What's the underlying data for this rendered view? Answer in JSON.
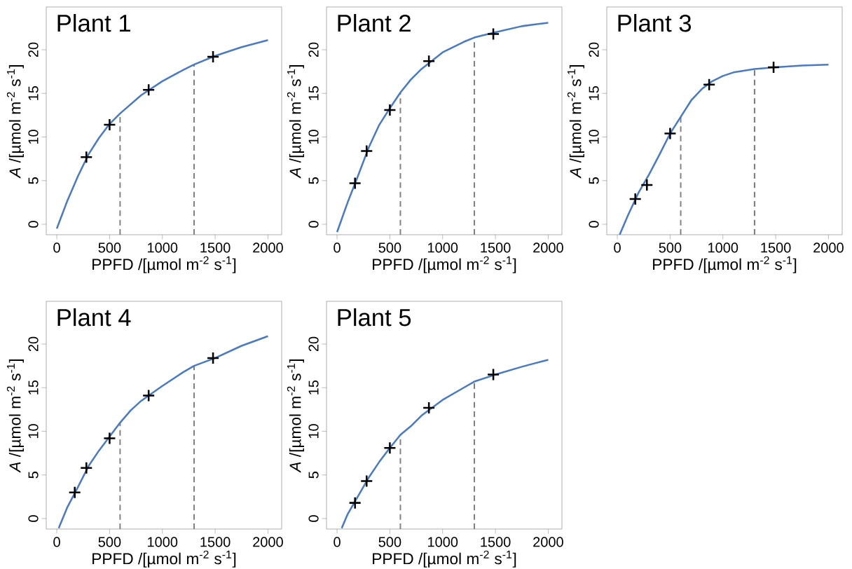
{
  "chart_data": [
    {
      "type": "line",
      "title": "Plant 1",
      "xlabel": "PPFD /[µmol m$^{-2}$ s$^{-1}$]",
      "ylabel": "*A* /[µmol m$^{-2}$ s$^{-1}$]",
      "xlim": [
        -100,
        2130
      ],
      "ylim": [
        -1.2,
        24.9
      ],
      "xticks": [
        0,
        500,
        1000,
        1500,
        2000
      ],
      "yticks": [
        0,
        5,
        10,
        15,
        20
      ],
      "series": [
        {
          "color": "#4a7ac4",
          "marker": "none",
          "x": [
            0,
            100,
            200,
            300,
            400,
            500,
            600,
            800,
            1000,
            1200,
            1300,
            1500,
            1750,
            2000
          ],
          "values": [
            -0.5,
            2.7,
            5.5,
            8.0,
            9.9,
            11.5,
            12.7,
            14.8,
            16.4,
            17.7,
            18.3,
            19.3,
            20.3,
            21.1
          ]
        },
        {
          "type": "scatter",
          "color": "#000000",
          "marker": "cross",
          "x": [
            280,
            500,
            870,
            1480
          ],
          "values": [
            7.7,
            11.4,
            15.4,
            19.2
          ]
        }
      ],
      "ref_lines": [
        {
          "axis": "x",
          "value": 600,
          "color": "#808080",
          "line_style": "dashed"
        },
        {
          "axis": "x",
          "value": 1300,
          "color": "#808080",
          "line_style": "dashed"
        }
      ]
    },
    {
      "type": "line",
      "title": "Plant 2",
      "xlabel": "PPFD /[µmol m$^{-2}$ s$^{-1}$]",
      "ylabel": "*A* /[µmol m$^{-2}$ s$^{-1}$]",
      "xlim": [
        -100,
        2130
      ],
      "ylim": [
        -1.2,
        24.9
      ],
      "xticks": [
        0,
        500,
        1000,
        1500,
        2000
      ],
      "yticks": [
        0,
        5,
        10,
        15,
        20
      ],
      "series": [
        {
          "color": "#4a7ac4",
          "marker": "none",
          "x": [
            0,
            100,
            200,
            300,
            400,
            500,
            600,
            700,
            800,
            1000,
            1200,
            1300,
            1500,
            1750,
            2000
          ],
          "values": [
            -0.9,
            2.5,
            5.6,
            8.8,
            11.4,
            13.3,
            15.1,
            16.6,
            17.8,
            19.7,
            20.9,
            21.4,
            22.0,
            22.7,
            23.1
          ]
        },
        {
          "type": "scatter",
          "color": "#000000",
          "marker": "cross",
          "x": [
            170,
            280,
            500,
            870,
            1480
          ],
          "values": [
            4.7,
            8.4,
            13.1,
            18.7,
            21.8
          ]
        }
      ],
      "ref_lines": [
        {
          "axis": "x",
          "value": 600,
          "color": "#808080",
          "line_style": "dashed"
        },
        {
          "axis": "x",
          "value": 1300,
          "color": "#808080",
          "line_style": "dashed"
        }
      ]
    },
    {
      "type": "line",
      "title": "Plant 3",
      "xlabel": "PPFD /[µmol m$^{-2}$ s$^{-1}$]",
      "ylabel": "*A* /[µmol m$^{-2}$ s$^{-1}$]",
      "xlim": [
        -100,
        2130
      ],
      "ylim": [
        -1.2,
        24.9
      ],
      "xticks": [
        0,
        500,
        1000,
        1500,
        2000
      ],
      "yticks": [
        0,
        5,
        10,
        15,
        20
      ],
      "series": [
        {
          "color": "#4a7ac4",
          "marker": "none",
          "x": [
            22,
            100,
            200,
            300,
            400,
            500,
            600,
            700,
            800,
            900,
            1000,
            1100,
            1300,
            1500,
            1750,
            2000
          ],
          "values": [
            -1.2,
            1.0,
            3.6,
            5.7,
            8.0,
            10.4,
            12.3,
            14.2,
            15.5,
            16.4,
            17.0,
            17.4,
            17.8,
            18.0,
            18.2,
            18.3
          ]
        },
        {
          "type": "scatter",
          "color": "#000000",
          "marker": "cross",
          "x": [
            170,
            280,
            500,
            870,
            1480
          ],
          "values": [
            2.9,
            4.5,
            10.4,
            16.0,
            18.0
          ]
        }
      ],
      "ref_lines": [
        {
          "axis": "x",
          "value": 600,
          "color": "#808080",
          "line_style": "dashed"
        },
        {
          "axis": "x",
          "value": 1300,
          "color": "#808080",
          "line_style": "dashed"
        }
      ]
    },
    {
      "type": "line",
      "title": "Plant 4",
      "xlabel": "PPFD /[µmol m$^{-2}$ s$^{-1}$]",
      "ylabel": "*A* /[µmol m$^{-2}$ s$^{-1}$]",
      "xlim": [
        -100,
        2130
      ],
      "ylim": [
        -1.2,
        24.9
      ],
      "xticks": [
        0,
        500,
        1000,
        1500,
        2000
      ],
      "yticks": [
        0,
        5,
        10,
        15,
        20
      ],
      "series": [
        {
          "color": "#4a7ac4",
          "marker": "none",
          "x": [
            18,
            100,
            200,
            300,
            400,
            500,
            600,
            700,
            800,
            1000,
            1200,
            1300,
            1500,
            1750,
            2000
          ],
          "values": [
            -1.1,
            1.3,
            3.6,
            6.0,
            7.8,
            9.4,
            11.0,
            12.4,
            13.5,
            15.2,
            16.8,
            17.5,
            18.4,
            19.8,
            20.9
          ]
        },
        {
          "type": "scatter",
          "color": "#000000",
          "marker": "cross",
          "x": [
            170,
            280,
            500,
            870,
            1480
          ],
          "values": [
            3.0,
            5.8,
            9.2,
            14.1,
            18.4
          ]
        }
      ],
      "ref_lines": [
        {
          "axis": "x",
          "value": 600,
          "color": "#808080",
          "line_style": "dashed"
        },
        {
          "axis": "x",
          "value": 1300,
          "color": "#808080",
          "line_style": "dashed"
        }
      ]
    },
    {
      "type": "line",
      "title": "Plant 5",
      "xlabel": "PPFD /[µmol m$^{-2}$ s$^{-1}$]",
      "ylabel": "*A* /[µmol m$^{-2}$ s$^{-1}$]",
      "xlim": [
        -100,
        2130
      ],
      "ylim": [
        -1.2,
        24.9
      ],
      "xticks": [
        0,
        500,
        1000,
        1500,
        2000
      ],
      "yticks": [
        0,
        5,
        10,
        15,
        20
      ],
      "series": [
        {
          "color": "#4a7ac4",
          "marker": "none",
          "x": [
            44,
            100,
            200,
            300,
            400,
            500,
            600,
            700,
            800,
            1000,
            1200,
            1300,
            1500,
            1750,
            2000
          ],
          "values": [
            -1.1,
            0.5,
            2.6,
            4.7,
            6.5,
            8.1,
            9.6,
            10.6,
            11.8,
            13.6,
            15.0,
            15.7,
            16.5,
            17.4,
            18.2
          ]
        },
        {
          "type": "scatter",
          "color": "#000000",
          "marker": "cross",
          "x": [
            170,
            280,
            500,
            870,
            1480
          ],
          "values": [
            1.8,
            4.3,
            8.1,
            12.7,
            16.5
          ]
        }
      ],
      "ref_lines": [
        {
          "axis": "x",
          "value": 600,
          "color": "#808080",
          "line_style": "dashed"
        },
        {
          "axis": "x",
          "value": 1300,
          "color": "#808080",
          "line_style": "dashed"
        }
      ]
    }
  ]
}
